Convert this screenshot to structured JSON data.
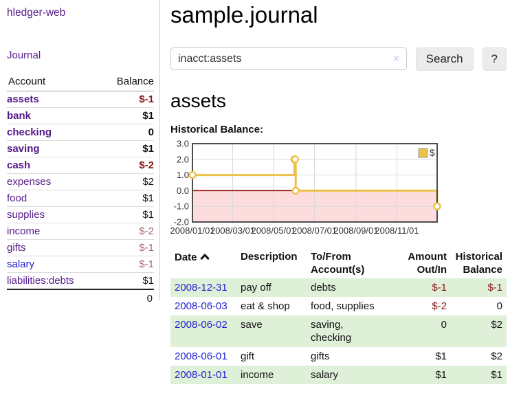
{
  "app": {
    "brand": "hledger-web",
    "nav": {
      "journal": "Journal"
    }
  },
  "sidebar": {
    "header": {
      "account": "Account",
      "balance": "Balance"
    },
    "accounts": [
      {
        "name": "assets",
        "balance": "$-1"
      },
      {
        "name": "bank",
        "balance": "$1"
      },
      {
        "name": "checking",
        "balance": "0"
      },
      {
        "name": "saving",
        "balance": "$1"
      },
      {
        "name": "cash",
        "balance": "$-2"
      },
      {
        "name": "expenses",
        "balance": "$2"
      },
      {
        "name": "food",
        "balance": "$1"
      },
      {
        "name": "supplies",
        "balance": "$1"
      },
      {
        "name": "income",
        "balance": "$-2"
      },
      {
        "name": "gifts",
        "balance": "$-1"
      },
      {
        "name": "salary",
        "balance": "$-1"
      },
      {
        "name": "liabilities:debts",
        "balance": "$1"
      }
    ],
    "total": "0"
  },
  "header": {
    "title": "sample.journal"
  },
  "search": {
    "value": "inacct:assets",
    "clear_icon": "✕",
    "search_button": "Search",
    "help_button": "?"
  },
  "account_page": {
    "title": "assets",
    "chart_heading": "Historical Balance:"
  },
  "chart_data": {
    "type": "line",
    "step": true,
    "title": "Historical Balance:",
    "series": [
      {
        "name": "$",
        "color": "#eac249",
        "points": [
          [
            "2008-01-01",
            1
          ],
          [
            "2008-06-01",
            2
          ],
          [
            "2008-06-02",
            2
          ],
          [
            "2008-06-03",
            0
          ],
          [
            "2008-12-31",
            -1
          ]
        ]
      }
    ],
    "xlim": [
      "2008-01-01",
      "2008-12-31"
    ],
    "ylim": [
      -2,
      3
    ],
    "x_ticks": [
      "2008/01/01",
      "2008/03/01",
      "2008/05/01",
      "2008/07/01",
      "2008/09/01",
      "2008/11/01"
    ],
    "y_tick_labels": [
      "3.0",
      "2.0",
      "1.0",
      "0.0",
      "-1.0",
      "-2.0"
    ],
    "grid": true,
    "legend_position": "top-right",
    "negative_region_color": "#fcdcdc",
    "zero_line_color": "#8b0000",
    "gridline_color": "#d9d9d9",
    "border_color": "#4d4d4d"
  },
  "register": {
    "columns": {
      "date": "Date",
      "description": "Description",
      "accounts": "To/From\nAccount(s)",
      "amount": "Amount\nOut/In",
      "balance": "Historical\nBalance"
    },
    "rows": [
      {
        "date": "2008-12-31",
        "description": "pay off",
        "accounts": "debts",
        "amount": "$-1",
        "balance": "$-1"
      },
      {
        "date": "2008-06-03",
        "description": "eat & shop",
        "accounts": "food, supplies",
        "amount": "$-2",
        "balance": "0"
      },
      {
        "date": "2008-06-02",
        "description": "save",
        "accounts": "saving,\nchecking",
        "amount": "0",
        "balance": "$2"
      },
      {
        "date": "2008-06-01",
        "description": "gift",
        "accounts": "gifts",
        "amount": "$1",
        "balance": "$2"
      },
      {
        "date": "2008-01-01",
        "description": "income",
        "accounts": "salary",
        "amount": "$1",
        "balance": "$1"
      }
    ]
  },
  "colors": {
    "link_purple": "#551a8b",
    "link_blue": "#2222d0",
    "negative": "#871717",
    "negative_muted": "#ac6767",
    "row_green": "#dff0d8",
    "chart_gold": "#eac249",
    "chart_negative_region": "#fcdcdc",
    "chart_zero_line": "#8b0000"
  }
}
